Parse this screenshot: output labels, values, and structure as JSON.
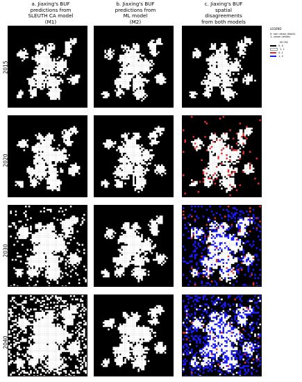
{
  "columns": [
    {
      "lines": [
        "a. Jiaxing's BUF",
        "predictions from",
        "SLEUTH CA model",
        "(M1)"
      ]
    },
    {
      "lines": [
        "b. Jiaxing's BUF",
        "predictions from",
        "ML model",
        "(M2)"
      ]
    },
    {
      "lines": [
        "c. Jiaxing's BUF",
        "spatial",
        "disagreements",
        "from both models"
      ]
    }
  ],
  "rows": [
    {
      "year": "2015",
      "white_level": [
        0.35,
        0.35,
        0.35
      ],
      "red_level": 0.0,
      "blue_level": 0.0
    },
    {
      "year": "2020",
      "white_level": [
        0.42,
        0.42,
        0.42
      ],
      "red_level": 0.15,
      "blue_level": 0.0
    },
    {
      "year": "2030",
      "white_level": [
        0.62,
        0.45,
        0.55
      ],
      "red_level": 0.08,
      "blue_level": 0.35
    },
    {
      "year": "2040",
      "white_level": [
        0.78,
        0.48,
        0.6
      ],
      "red_level": 0.03,
      "blue_level": 0.55
    }
  ],
  "legend": {
    "title": "LEGEND",
    "line1": "0: non urban (black)",
    "line2": "1: urban (white)",
    "header": "M1 M2",
    "items": [
      {
        "label": "0, 0",
        "color": "#000000"
      },
      {
        "label": "1, 1",
        "color": "#ffffff"
      },
      {
        "label": "0, 1",
        "color": "#e03030"
      },
      {
        "label": "1, 0",
        "color": "#1a1aff"
      }
    ]
  }
}
